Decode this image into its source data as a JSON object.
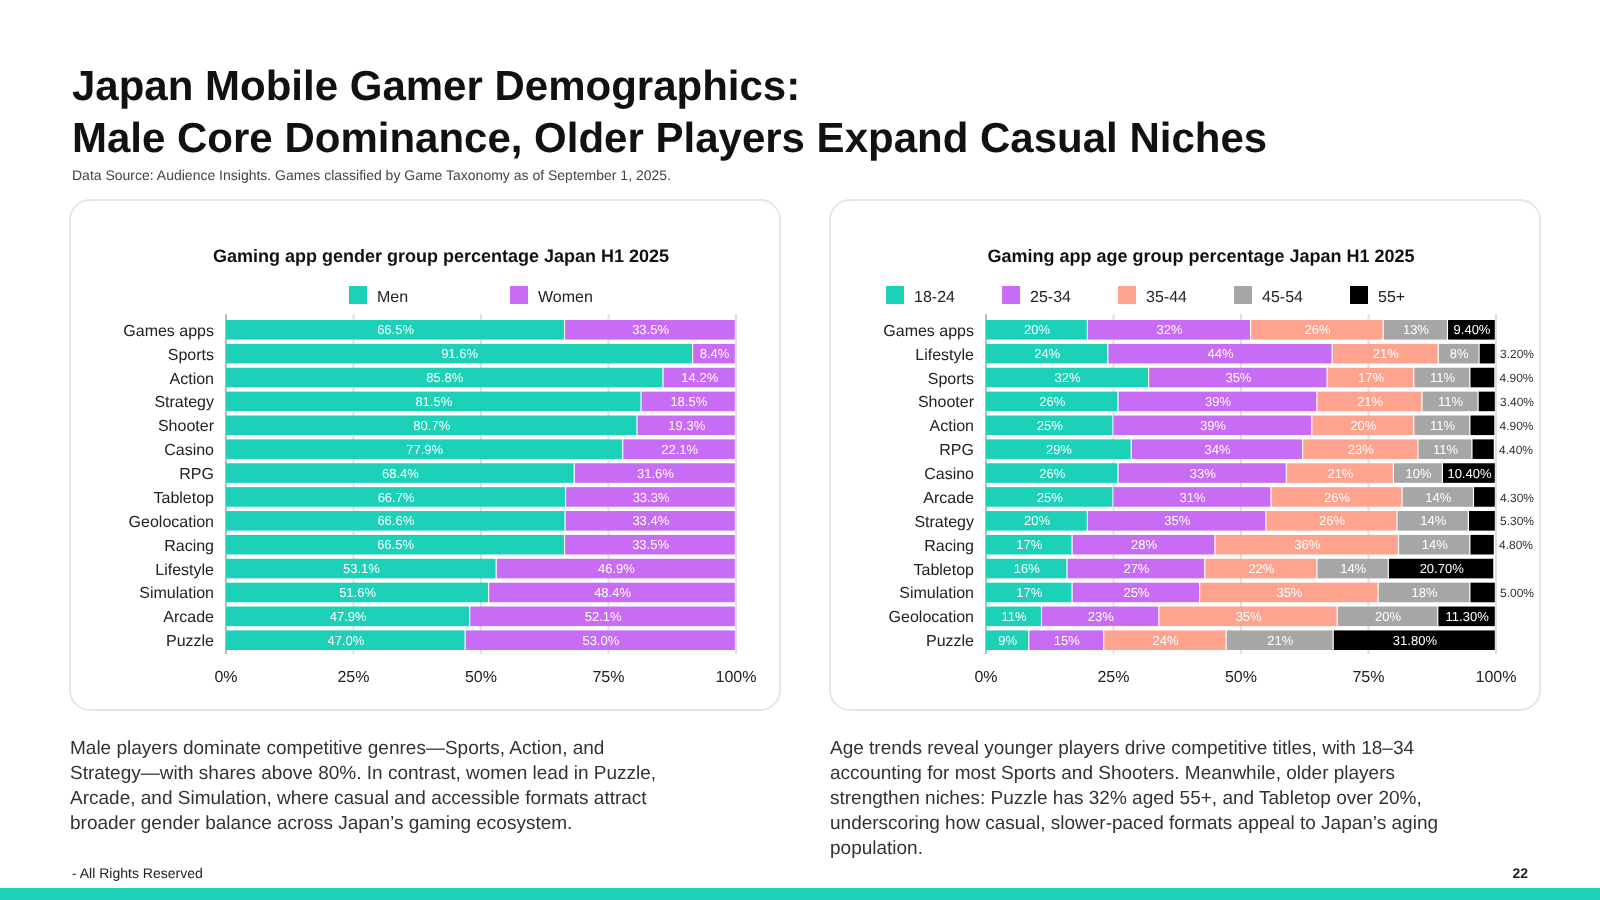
{
  "chart_data": [
    {
      "type": "other",
      "title": "Japan Mobile Gamer Demographics:\nMale Core Dominance, Older Players Expand Casual Niches",
      "subtitle": "Data Source: Audience Insights. Games classified by Game Taxonomy as of September 1, 2025.",
      "annotations": [
        "- All Rights Reserved",
        "22"
      ]
    },
    {
      "type": "bar",
      "orientation": "horizontal",
      "stacked": true,
      "title": "Gaming app gender group percentage Japan H1 2025",
      "categories": [
        "Games apps",
        "Sports",
        "Action",
        "Strategy",
        "Shooter",
        "Casino",
        "RPG",
        "Tabletop",
        "Geolocation",
        "Racing",
        "Lifestyle",
        "Simulation",
        "Arcade",
        "Puzzle"
      ],
      "series": [
        {
          "name": "Men",
          "color": "#1dd1b8",
          "values": [
            66.5,
            91.6,
            85.8,
            81.5,
            80.7,
            77.9,
            68.4,
            66.7,
            66.6,
            66.5,
            53.1,
            51.6,
            47.9,
            47.0
          ],
          "value_labels": [
            "66.5%",
            "91.6%",
            "85.8%",
            "81.5%",
            "80.7%",
            "77.9%",
            "68.4%",
            "66.7%",
            "66.6%",
            "66.5%",
            "53.1%",
            "51.6%",
            "47.9%",
            "47.0%"
          ]
        },
        {
          "name": "Women",
          "color": "#c86cf5",
          "values": [
            33.5,
            8.4,
            14.2,
            18.5,
            19.3,
            22.1,
            31.6,
            33.3,
            33.4,
            33.5,
            46.9,
            48.4,
            52.1,
            53.0
          ],
          "value_labels": [
            "33.5%",
            "8.4%",
            "14.2%",
            "18.5%",
            "19.3%",
            "22.1%",
            "31.6%",
            "33.3%",
            "33.4%",
            "33.5%",
            "46.9%",
            "48.4%",
            "52.1%",
            "53.0%"
          ]
        }
      ],
      "xlim": [
        0,
        100
      ],
      "xticks": [
        {
          "value": 0,
          "label": "0%"
        },
        {
          "value": 25,
          "label": "25%"
        },
        {
          "value": 50,
          "label": "50%"
        },
        {
          "value": 75,
          "label": "75%"
        },
        {
          "value": 100,
          "label": "100%"
        }
      ],
      "grid": "x",
      "legend": "top",
      "annotations": [
        "Male players dominate competitive genres—Sports, Action, and Strategy—with shares above 80%. In contrast, women lead in Puzzle, Arcade, and Simulation, where casual and accessible formats attract broader gender balance across Japan’s gaming ecosystem."
      ]
    },
    {
      "type": "bar",
      "orientation": "horizontal",
      "stacked": true,
      "title": "Gaming app age group percentage Japan H1 2025",
      "categories": [
        "Games apps",
        "Lifestyle",
        "Sports",
        "Shooter",
        "Action",
        "RPG",
        "Casino",
        "Arcade",
        "Strategy",
        "Racing",
        "Tabletop",
        "Simulation",
        "Geolocation",
        "Puzzle"
      ],
      "series": [
        {
          "name": "18-24",
          "color": "#1dd1b8",
          "values": [
            20,
            24,
            32,
            26,
            25,
            28.6,
            26,
            25,
            20,
            17,
            16,
            17,
            11,
            8.5
          ],
          "value_labels": [
            "20%",
            "24%",
            "32%",
            "26%",
            "25%",
            "29%",
            "26%",
            "25%",
            "20%",
            "17%",
            "16%",
            "17%",
            "11%",
            "9%"
          ]
        },
        {
          "name": "25-34",
          "color": "#c86cf5",
          "values": [
            32,
            44,
            35,
            39,
            39,
            33.6,
            33,
            31,
            35,
            28,
            27,
            25,
            23,
            14.7
          ],
          "value_labels": [
            "32%",
            "44%",
            "35%",
            "39%",
            "39%",
            "34%",
            "33%",
            "31%",
            "35%",
            "28%",
            "27%",
            "25%",
            "23%",
            "15%"
          ]
        },
        {
          "name": "35-44",
          "color": "#ffa38f",
          "values": [
            26,
            20.8,
            17,
            20.6,
            20,
            22.6,
            21,
            25.7,
            25.7,
            36,
            22,
            35,
            35,
            24
          ],
          "value_labels": [
            "26%",
            "21%",
            "17%",
            "21%",
            "20%",
            "23%",
            "21%",
            "26%",
            "26%",
            "36%",
            "22%",
            "35%",
            "35%",
            "24%"
          ]
        },
        {
          "name": "45-54",
          "color": "#a6a6a6",
          "values": [
            12.6,
            8,
            11,
            11,
            11,
            10.6,
            9.6,
            14,
            14,
            14,
            14,
            18,
            19.7,
            21
          ],
          "value_labels": [
            "13%",
            "8%",
            "11%",
            "11%",
            "11%",
            "11%",
            "10%",
            "14%",
            "14%",
            "14%",
            "14%",
            "18%",
            "20%",
            "21%"
          ]
        },
        {
          "name": "55+",
          "color": "#000000",
          "values": [
            9.4,
            3.2,
            4.9,
            3.4,
            4.9,
            4.4,
            10.4,
            4.3,
            5.3,
            4.8,
            20.7,
            5.0,
            11.3,
            31.8
          ],
          "value_labels": [
            "9.40%",
            "3.20%",
            "4.90%",
            "3.40%",
            "4.90%",
            "4.40%",
            "10.40%",
            "4.30%",
            "5.30%",
            "4.80%",
            "20.70%",
            "5.00%",
            "11.30%",
            "31.80%"
          ]
        }
      ],
      "xlim": [
        0,
        100
      ],
      "xticks": [
        {
          "value": 0,
          "label": "0%"
        },
        {
          "value": 25,
          "label": "25%"
        },
        {
          "value": 50,
          "label": "50%"
        },
        {
          "value": 75,
          "label": "75%"
        },
        {
          "value": 100,
          "label": "100%"
        }
      ],
      "grid": "x",
      "legend": "top",
      "annotations": [
        "Age trends reveal younger players drive competitive titles, with 18–34 accounting for most Sports and Shooters. Meanwhile, older players strengthen niches: Puzzle has 32% aged 55+, and Tabletop over 20%, underscoring how casual, slower-paced formats appeal to Japan’s aging population."
      ]
    }
  ]
}
